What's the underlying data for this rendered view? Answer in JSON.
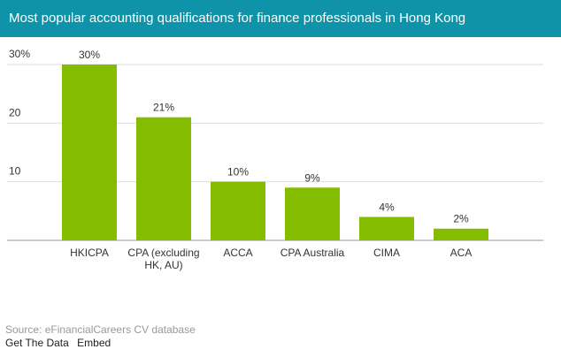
{
  "chart_data": {
    "type": "bar",
    "title": "Most popular accounting qualifications for finance professionals in Hong Kong",
    "categories": [
      "HKICPA",
      "CPA (excluding HK, AU)",
      "ACCA",
      "CPA Australia",
      "CIMA",
      "ACA"
    ],
    "values": [
      30,
      21,
      10,
      9,
      4,
      2
    ],
    "value_labels": [
      "30%",
      "21%",
      "10%",
      "9%",
      "4%",
      "2%"
    ],
    "color": "#84bd00",
    "ylim": [
      0,
      30
    ],
    "yticks": [
      10,
      20,
      {
        "value": 30,
        "label": "30%"
      }
    ],
    "grid": true,
    "source": "Source: eFinancialCareers CV database",
    "links": [
      "Get The Data",
      "Embed"
    ]
  }
}
